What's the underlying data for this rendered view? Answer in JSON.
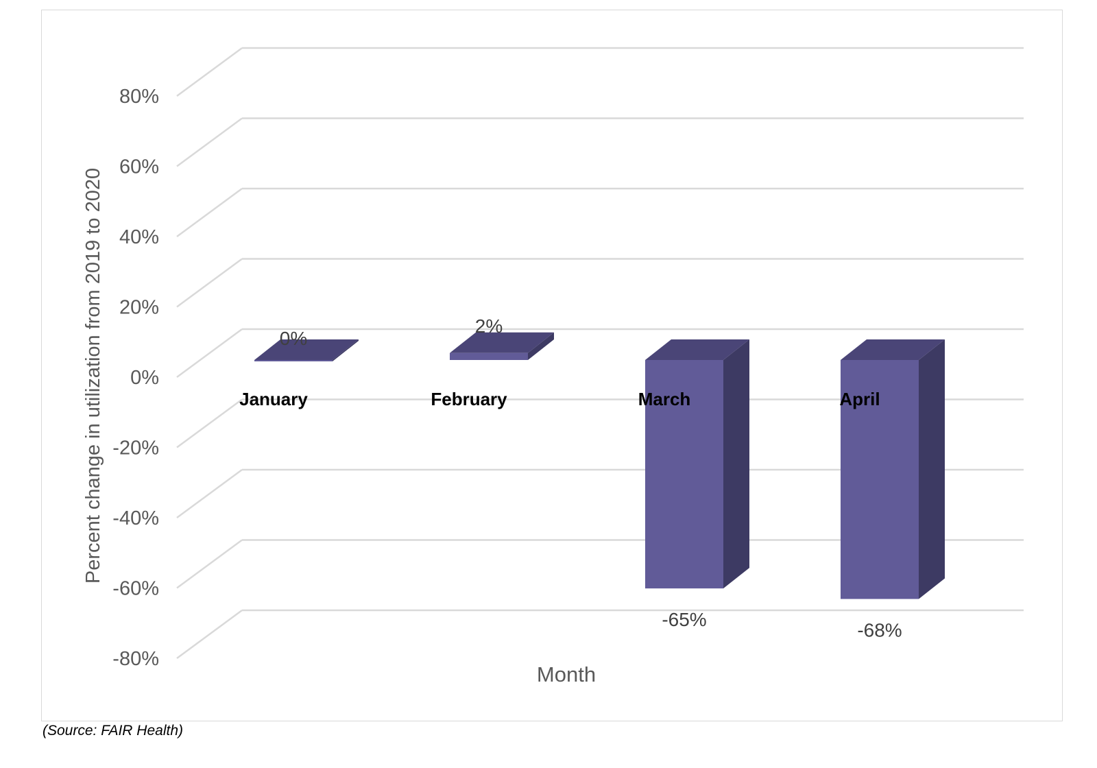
{
  "chart_data": {
    "type": "bar",
    "style": "3d-column",
    "categories": [
      "January",
      "February",
      "March",
      "April"
    ],
    "values": [
      0,
      2,
      -65,
      -68
    ],
    "data_labels": [
      "0%",
      "2%",
      "-65%",
      "-68%"
    ],
    "ylabel": "Percent change in utilization from 2019 to 2020",
    "xlabel": "Month",
    "ylim": [
      -80,
      80
    ],
    "y_ticks": [
      80,
      60,
      40,
      20,
      0,
      -20,
      -40,
      -60,
      -80
    ],
    "y_tick_labels": [
      "80%",
      "60%",
      "40%",
      "20%",
      "0%",
      "-20%",
      "-40%",
      "-60%",
      "-80%"
    ],
    "grid": true,
    "colors": {
      "bar_front": "#615b98",
      "bar_side": "#3d3a63",
      "bar_top": "#4a4577",
      "grid": "#d9d9d9"
    }
  },
  "source_note": "(Source: FAIR Health)"
}
